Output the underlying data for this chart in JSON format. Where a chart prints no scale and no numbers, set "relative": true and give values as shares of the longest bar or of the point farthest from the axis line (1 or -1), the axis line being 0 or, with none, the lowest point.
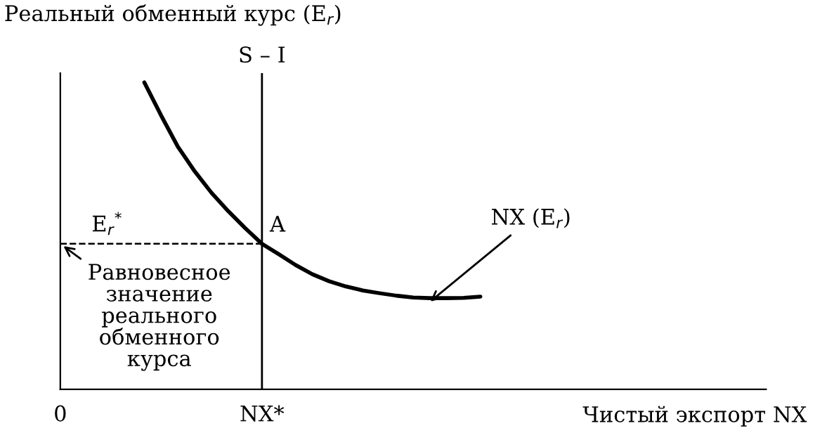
{
  "chart_data": {
    "type": "line",
    "relative": true,
    "xlabel": "Чистый экспорт NX",
    "ylabel": "Реальный обменный курс (E$_{r}$)",
    "categories": [
      "0",
      null,
      null,
      null,
      null,
      null,
      null,
      null,
      null,
      null,
      null,
      null,
      "NX*",
      null,
      null,
      null,
      null,
      null,
      null,
      null,
      null,
      null,
      null,
      null,
      null,
      null,
      null,
      null,
      null,
      null,
      null,
      null,
      null,
      null,
      null,
      null,
      null,
      null,
      null,
      null,
      null,
      null,
      null
    ],
    "series": [
      {
        "color": "#000000",
        "values": [
          null,
          null,
          null,
          null,
          null,
          1.0,
          0.892,
          0.79,
          0.71,
          0.64,
          0.58,
          0.525,
          0.474,
          0.44,
          0.405,
          0.375,
          0.352,
          0.335,
          0.322,
          0.313,
          0.305,
          0.299,
          0.297,
          0.297,
          0.298,
          0.302,
          null,
          null,
          null,
          null,
          null,
          null,
          null,
          null,
          null,
          null,
          null,
          null,
          null,
          null,
          null,
          null,
          null
        ]
      }
    ],
    "ref_lines": [
      {
        "axis": "x",
        "value": "NX*",
        "label": "S – I",
        "color": "#000000",
        "line_style": "solid"
      },
      {
        "axis": "y",
        "value": 0.474,
        "label": "E$_{r}$$^{*}$",
        "color": "#000000",
        "line_style": "dashed"
      }
    ],
    "annotations": [
      {
        "text": "A",
        "x": "NX*",
        "y": 0.474
      },
      "NX (E$_{r}$)",
      {
        "text": "Равновесное\nзначение\nреального\nобменного\nкурса",
        "x": "0",
        "y": 0.474
      }
    ],
    "grid": false,
    "marker": "none",
    "line_style": "solid"
  }
}
